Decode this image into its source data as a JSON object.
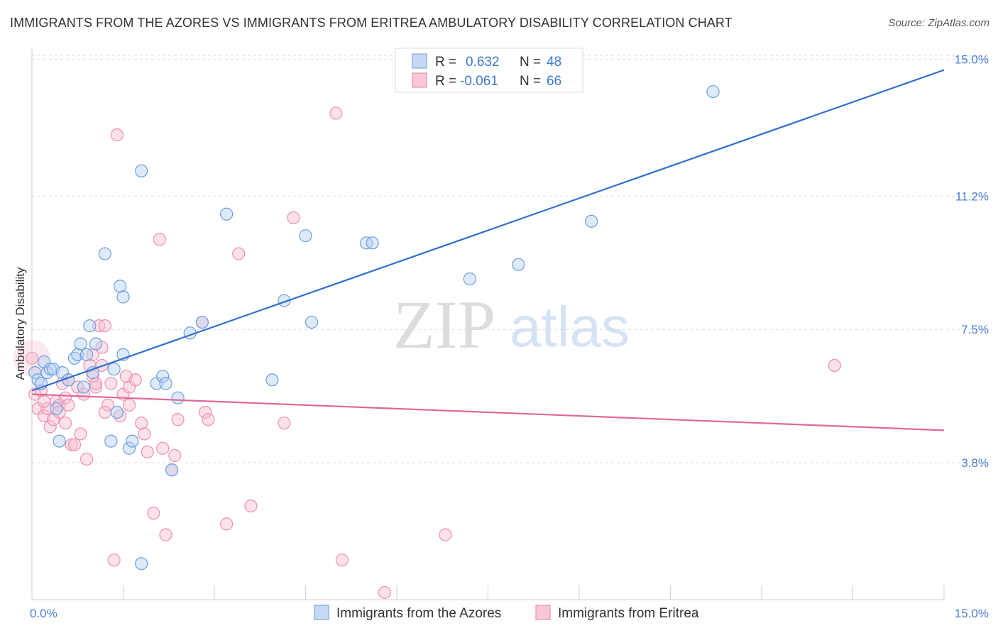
{
  "header": {
    "title": "IMMIGRANTS FROM THE AZORES VS IMMIGRANTS FROM ERITREA AMBULATORY DISABILITY CORRELATION CHART",
    "source": "Source: ZipAtlas.com"
  },
  "watermark": {
    "zip": "ZIP",
    "atlas": "atlas"
  },
  "legend_box": {
    "rows": [
      {
        "r_label": "R =",
        "r_value": "0.632",
        "n_label": "N =",
        "n_value": "48"
      },
      {
        "r_label": "R =",
        "r_value": "-0.061",
        "n_label": "N =",
        "n_value": "66"
      }
    ]
  },
  "bottom_legend": [
    "Immigrants from the Azores",
    "Immigrants from Eritrea"
  ],
  "chart_data": {
    "type": "scatter",
    "title": "IMMIGRANTS FROM THE AZORES VS IMMIGRANTS FROM ERITREA AMBULATORY DISABILITY CORRELATION CHART",
    "ylabel": "Ambulatory Disability",
    "xlabel": "",
    "xlim": [
      0,
      15
    ],
    "ylim": [
      0,
      15.5
    ],
    "x_tick_labels": [
      "0.0%",
      "15.0%"
    ],
    "y_ticks": [
      3.8,
      7.5,
      11.2,
      15.0
    ],
    "y_tick_labels": [
      "3.8%",
      "7.5%",
      "11.2%",
      "15.0%"
    ],
    "grid": "horizontal dashed",
    "legend_position": "top-center",
    "colors": {
      "azores": "#6a9fe0",
      "eritrea": "#ee8fb0",
      "azores_line": "#2f6fd0",
      "eritrea_line": "#e0679a"
    },
    "series": [
      {
        "name": "Immigrants from the Azores",
        "r": 0.632,
        "n": 48,
        "trend": {
          "x": [
            0,
            15
          ],
          "y": [
            5.8,
            14.7
          ]
        },
        "points": [
          [
            0.05,
            6.3
          ],
          [
            0.1,
            6.1
          ],
          [
            0.15,
            6.0
          ],
          [
            0.2,
            6.6
          ],
          [
            0.25,
            6.3
          ],
          [
            0.3,
            6.4
          ],
          [
            0.35,
            6.4
          ],
          [
            0.4,
            5.3
          ],
          [
            0.45,
            4.4
          ],
          [
            0.5,
            6.3
          ],
          [
            0.6,
            6.1
          ],
          [
            0.7,
            6.7
          ],
          [
            0.75,
            6.8
          ],
          [
            0.8,
            7.1
          ],
          [
            0.85,
            5.9
          ],
          [
            0.9,
            6.8
          ],
          [
            0.95,
            7.6
          ],
          [
            1.0,
            6.3
          ],
          [
            1.05,
            7.1
          ],
          [
            1.2,
            9.6
          ],
          [
            1.3,
            4.4
          ],
          [
            1.35,
            6.4
          ],
          [
            1.4,
            5.2
          ],
          [
            1.45,
            8.7
          ],
          [
            1.5,
            6.8
          ],
          [
            1.5,
            8.4
          ],
          [
            1.6,
            4.2
          ],
          [
            1.65,
            4.4
          ],
          [
            1.8,
            11.9
          ],
          [
            2.05,
            6.0
          ],
          [
            2.15,
            6.2
          ],
          [
            2.2,
            6.0
          ],
          [
            2.3,
            3.6
          ],
          [
            2.4,
            5.6
          ],
          [
            2.6,
            7.4
          ],
          [
            2.8,
            7.7
          ],
          [
            3.2,
            10.7
          ],
          [
            3.95,
            6.1
          ],
          [
            4.15,
            8.3
          ],
          [
            4.5,
            10.1
          ],
          [
            4.6,
            7.7
          ],
          [
            5.5,
            9.9
          ],
          [
            5.6,
            9.9
          ],
          [
            7.2,
            8.9
          ],
          [
            8.0,
            9.3
          ],
          [
            9.2,
            10.5
          ],
          [
            11.2,
            14.1
          ],
          [
            1.8,
            1.0
          ]
        ]
      },
      {
        "name": "Immigrants from Eritrea",
        "r": -0.061,
        "n": 66,
        "trend": {
          "x": [
            0,
            15
          ],
          "y": [
            5.7,
            4.7
          ]
        },
        "points": [
          [
            0.0,
            6.7
          ],
          [
            0.05,
            5.7
          ],
          [
            0.1,
            5.3
          ],
          [
            0.15,
            5.8
          ],
          [
            0.2,
            5.1
          ],
          [
            0.25,
            5.3
          ],
          [
            0.3,
            4.8
          ],
          [
            0.35,
            5.0
          ],
          [
            0.4,
            5.5
          ],
          [
            0.45,
            5.4
          ],
          [
            0.5,
            6.0
          ],
          [
            0.55,
            5.6
          ],
          [
            0.6,
            5.4
          ],
          [
            0.65,
            4.3
          ],
          [
            0.7,
            4.3
          ],
          [
            0.75,
            5.9
          ],
          [
            0.8,
            4.6
          ],
          [
            0.85,
            5.7
          ],
          [
            0.9,
            3.9
          ],
          [
            0.95,
            6.5
          ],
          [
            1.0,
            6.8
          ],
          [
            1.05,
            5.9
          ],
          [
            1.1,
            7.6
          ],
          [
            1.15,
            7.0
          ],
          [
            1.2,
            7.6
          ],
          [
            1.25,
            5.4
          ],
          [
            1.3,
            6.0
          ],
          [
            1.35,
            1.1
          ],
          [
            1.4,
            12.9
          ],
          [
            1.45,
            5.1
          ],
          [
            1.5,
            5.7
          ],
          [
            1.55,
            6.2
          ],
          [
            1.6,
            5.9
          ],
          [
            1.7,
            6.1
          ],
          [
            1.8,
            4.9
          ],
          [
            1.85,
            4.6
          ],
          [
            1.9,
            4.1
          ],
          [
            2.0,
            2.4
          ],
          [
            2.1,
            10.0
          ],
          [
            2.15,
            4.2
          ],
          [
            2.2,
            1.8
          ],
          [
            2.3,
            3.6
          ],
          [
            2.4,
            5.0
          ],
          [
            2.8,
            7.7
          ],
          [
            2.85,
            5.2
          ],
          [
            2.9,
            5.0
          ],
          [
            3.2,
            2.1
          ],
          [
            3.4,
            9.6
          ],
          [
            3.6,
            2.6
          ],
          [
            4.15,
            4.9
          ],
          [
            4.3,
            10.6
          ],
          [
            5.0,
            13.5
          ],
          [
            5.1,
            1.1
          ],
          [
            5.8,
            0.2
          ],
          [
            6.8,
            1.8
          ],
          [
            13.2,
            6.5
          ],
          [
            0.2,
            5.5
          ],
          [
            0.45,
            5.2
          ],
          [
            0.55,
            4.9
          ],
          [
            1.0,
            6.2
          ],
          [
            1.2,
            5.2
          ],
          [
            0.6,
            6.1
          ],
          [
            1.15,
            6.5
          ],
          [
            1.6,
            5.4
          ],
          [
            2.35,
            4.0
          ],
          [
            1.05,
            6.0
          ]
        ]
      }
    ]
  }
}
